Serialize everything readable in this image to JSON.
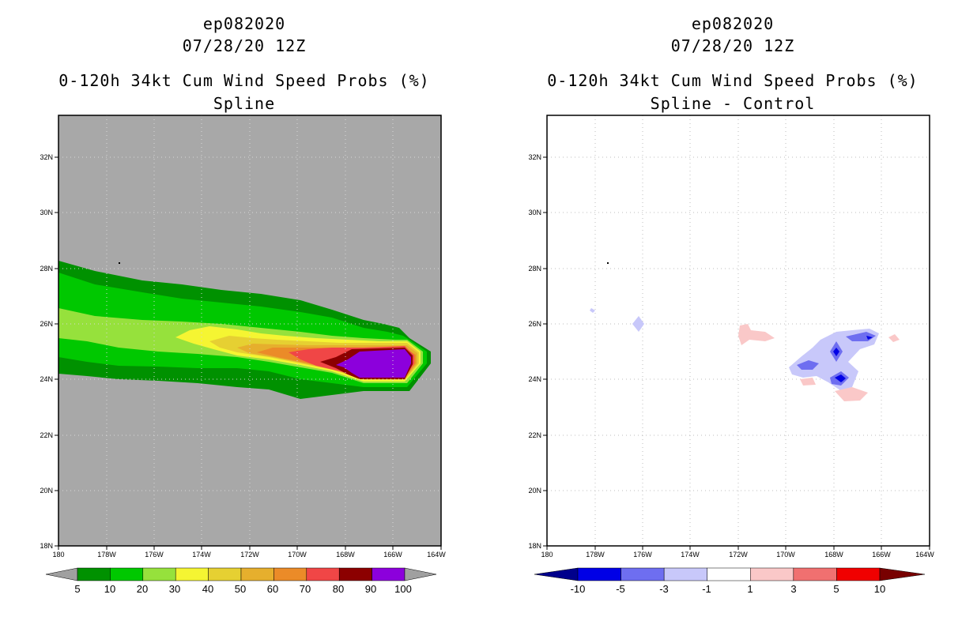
{
  "panels": [
    {
      "storm_id": "ep082020",
      "date": "07/28/20 12Z",
      "product": "0-120h 34kt Cum Wind Speed Probs (%)",
      "subtitle": "Spline"
    },
    {
      "storm_id": "ep082020",
      "date": "07/28/20 12Z",
      "product": "0-120h 34kt Cum Wind Speed Probs (%)",
      "subtitle": "Spline - Control"
    }
  ],
  "map": {
    "x_ticks": [
      "180",
      "178W",
      "176W",
      "174W",
      "172W",
      "170W",
      "168W",
      "166W",
      "164W"
    ],
    "y_ticks": [
      "18N",
      "20N",
      "22N",
      "24N",
      "26N",
      "28N",
      "30N",
      "32N"
    ]
  },
  "colorbars": {
    "probability": {
      "labels": [
        "5",
        "10",
        "20",
        "30",
        "40",
        "50",
        "60",
        "70",
        "80",
        "90",
        "100"
      ],
      "colors": [
        "#009100",
        "#00c800",
        "#96e13c",
        "#f5f532",
        "#e6d032",
        "#e6af2d",
        "#eb8b28",
        "#f04646",
        "#8c0000",
        "#8c00dc"
      ],
      "under_color": "#a0a0a0",
      "over_color": "#a0a0a0"
    },
    "difference": {
      "labels": [
        "-10",
        "-5",
        "-3",
        "-1",
        "1",
        "3",
        "5",
        "10"
      ],
      "colors": [
        "#0000e6",
        "#6e6ef0",
        "#c8c8fa",
        "#ffffff",
        "#fac8c8",
        "#f07070",
        "#f00000"
      ],
      "under_color": "#00008c",
      "over_color": "#780000"
    }
  }
}
